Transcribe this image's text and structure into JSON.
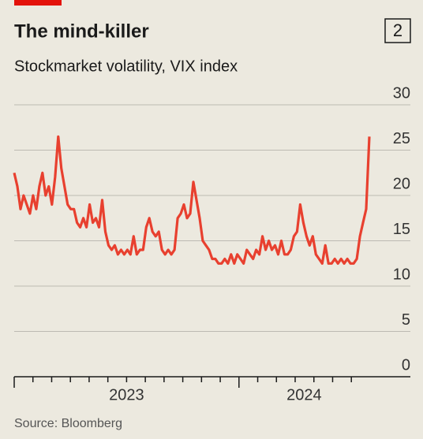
{
  "chart_data": {
    "type": "line",
    "title": "The mind-killer",
    "chart_number": "2",
    "subtitle": "Stockmarket volatility, VIX index",
    "source": "Source: Bloomberg",
    "color": "#e8402f",
    "grid": true,
    "ylim": [
      0,
      30
    ],
    "yticks": [
      0,
      5,
      10,
      15,
      20,
      25,
      30
    ],
    "xlim": [
      2023,
      2024.58
    ],
    "xticks": [
      {
        "value": 2023.5,
        "label": "2023"
      },
      {
        "value": 2024.29,
        "label": "2024"
      }
    ],
    "values": [
      22.5,
      21,
      18.5,
      20,
      19,
      18,
      20,
      18.5,
      21,
      22.5,
      20,
      21,
      19,
      22,
      26.5,
      23,
      21,
      19,
      18.5,
      18.5,
      17,
      16.5,
      17.5,
      16.5,
      19,
      17,
      17.5,
      16.5,
      19.5,
      16,
      14.5,
      14,
      14.5,
      13.5,
      14,
      13.5,
      14,
      13.5,
      15.5,
      13.5,
      14,
      14,
      16.5,
      17.5,
      16,
      15.5,
      16,
      14,
      13.5,
      14,
      13.5,
      14,
      17.5,
      18,
      19,
      17.5,
      18,
      21.5,
      19.5,
      17.5,
      15,
      14.5,
      14,
      13,
      13,
      12.5,
      12.5,
      13,
      12.5,
      13.5,
      12.5,
      13.5,
      13,
      12.5,
      14,
      13.5,
      13,
      14,
      13.5,
      15.5,
      14,
      15,
      14,
      14.5,
      13.5,
      15,
      13.5,
      13.5,
      14,
      15.5,
      16,
      19,
      17,
      15.5,
      14.5,
      15.5,
      13.5,
      13,
      12.5,
      14.5,
      12.5,
      12.5,
      13,
      12.5,
      13,
      12.5,
      13,
      12.5,
      12.5,
      13,
      15.5,
      17,
      18.5,
      26.5
    ]
  }
}
